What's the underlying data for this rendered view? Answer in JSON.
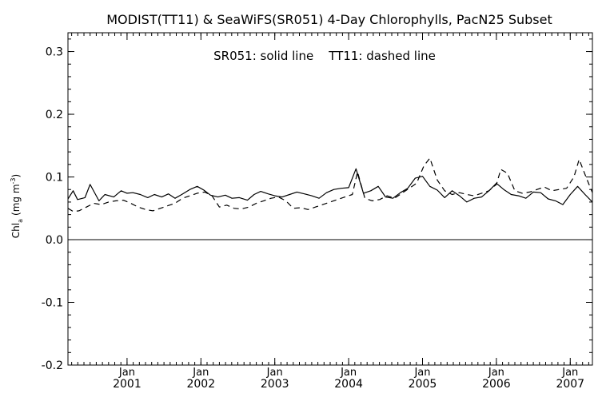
{
  "chart_data": {
    "type": "line",
    "title": "MODIST(TT11) & SeaWiFS(SR051) 4-Day Chlorophylls, PacN25 Subset",
    "annotation": "SR051: solid line    TT11: dashed line",
    "ylabel_main": "Chl",
    "ylabel_sub": "a",
    "ylabel_unit": "(mg m",
    "ylabel_exp": "-3",
    "ylabel_close": ")",
    "xlim": [
      2000.2,
      2007.3
    ],
    "ylim": [
      -0.2,
      0.33
    ],
    "yticks": [
      -0.2,
      -0.1,
      0.0,
      0.1,
      0.2,
      0.3
    ],
    "ytick_labels": [
      "-0.2",
      "-0.1",
      "0.0",
      "0.1",
      "0.2",
      "0.3"
    ],
    "xticks": [
      {
        "x": 2001,
        "month": "Jan",
        "year": "2001"
      },
      {
        "x": 2002,
        "month": "Jan",
        "year": "2002"
      },
      {
        "x": 2003,
        "month": "Jan",
        "year": "2003"
      },
      {
        "x": 2004,
        "month": "Jan",
        "year": "2004"
      },
      {
        "x": 2005,
        "month": "Jan",
        "year": "2005"
      },
      {
        "x": 2006,
        "month": "Jan",
        "year": "2006"
      },
      {
        "x": 2007,
        "month": "Jan",
        "year": "2007"
      }
    ],
    "zero_line": 0.0,
    "series": [
      {
        "name": "SR051",
        "style": "solid",
        "x": [
          2000.2,
          2000.27,
          2000.33,
          2000.43,
          2000.5,
          2000.62,
          2000.7,
          2000.82,
          2000.92,
          2001.0,
          2001.08,
          2001.18,
          2001.28,
          2001.37,
          2001.47,
          2001.56,
          2001.65,
          2001.74,
          2001.85,
          2001.95,
          2002.04,
          2002.13,
          2002.23,
          2002.33,
          2002.42,
          2002.52,
          2002.63,
          2002.72,
          2002.81,
          2002.91,
          2003.0,
          2003.1,
          2003.2,
          2003.3,
          2003.4,
          2003.5,
          2003.6,
          2003.7,
          2003.8,
          2003.9,
          2004.0,
          2004.1,
          2004.2,
          2004.3,
          2004.4,
          2004.5,
          2004.6,
          2004.7,
          2004.8,
          2004.9,
          2005.0,
          2005.1,
          2005.2,
          2005.3,
          2005.4,
          2005.5,
          2005.6,
          2005.7,
          2005.8,
          2005.9,
          2006.0,
          2006.1,
          2006.2,
          2006.3,
          2006.4,
          2006.5,
          2006.6,
          2006.7,
          2006.8,
          2006.9,
          2007.0,
          2007.1,
          2007.2,
          2007.3
        ],
        "y": [
          0.065,
          0.078,
          0.064,
          0.067,
          0.088,
          0.062,
          0.072,
          0.068,
          0.078,
          0.074,
          0.075,
          0.072,
          0.067,
          0.072,
          0.068,
          0.073,
          0.066,
          0.072,
          0.08,
          0.085,
          0.079,
          0.071,
          0.068,
          0.071,
          0.066,
          0.067,
          0.063,
          0.072,
          0.077,
          0.073,
          0.07,
          0.068,
          0.072,
          0.076,
          0.073,
          0.07,
          0.066,
          0.075,
          0.08,
          0.082,
          0.083,
          0.113,
          0.074,
          0.078,
          0.085,
          0.068,
          0.066,
          0.075,
          0.082,
          0.098,
          0.101,
          0.085,
          0.079,
          0.067,
          0.078,
          0.07,
          0.06,
          0.066,
          0.068,
          0.078,
          0.09,
          0.08,
          0.072,
          0.07,
          0.066,
          0.076,
          0.075,
          0.065,
          0.062,
          0.056,
          0.072,
          0.085,
          0.072,
          0.06
        ]
      },
      {
        "name": "TT11",
        "style": "dashed",
        "x": [
          2000.2,
          2000.27,
          2000.35,
          2000.45,
          2000.55,
          2000.65,
          2000.75,
          2000.85,
          2000.95,
          2001.05,
          2001.15,
          2001.25,
          2001.35,
          2001.45,
          2001.55,
          2001.65,
          2001.75,
          2001.85,
          2001.95,
          2002.05,
          2002.15,
          2002.25,
          2002.35,
          2002.45,
          2002.55,
          2002.65,
          2002.75,
          2002.85,
          2002.95,
          2003.05,
          2003.15,
          2003.25,
          2003.35,
          2003.45,
          2003.55,
          2003.65,
          2003.75,
          2003.85,
          2003.95,
          2004.05,
          2004.12,
          2004.22,
          2004.32,
          2004.42,
          2004.52,
          2004.62,
          2004.72,
          2004.82,
          2004.92,
          2005.02,
          2005.1,
          2005.2,
          2005.3,
          2005.4,
          2005.5,
          2005.6,
          2005.7,
          2005.8,
          2005.9,
          2006.0,
          2006.06,
          2006.15,
          2006.25,
          2006.35,
          2006.45,
          2006.55,
          2006.65,
          2006.75,
          2006.85,
          2006.95,
          2007.05,
          2007.12,
          2007.22,
          2007.3
        ],
        "y": [
          0.05,
          0.045,
          0.046,
          0.052,
          0.058,
          0.056,
          0.06,
          0.062,
          0.063,
          0.058,
          0.052,
          0.048,
          0.046,
          0.05,
          0.054,
          0.058,
          0.066,
          0.07,
          0.074,
          0.076,
          0.07,
          0.052,
          0.055,
          0.05,
          0.049,
          0.052,
          0.058,
          0.062,
          0.066,
          0.068,
          0.062,
          0.05,
          0.051,
          0.048,
          0.052,
          0.056,
          0.06,
          0.064,
          0.068,
          0.072,
          0.108,
          0.066,
          0.062,
          0.064,
          0.07,
          0.066,
          0.074,
          0.082,
          0.09,
          0.118,
          0.13,
          0.095,
          0.078,
          0.072,
          0.075,
          0.072,
          0.07,
          0.074,
          0.078,
          0.088,
          0.112,
          0.106,
          0.078,
          0.074,
          0.076,
          0.08,
          0.084,
          0.078,
          0.08,
          0.082,
          0.1,
          0.128,
          0.098,
          0.075
        ]
      }
    ]
  }
}
